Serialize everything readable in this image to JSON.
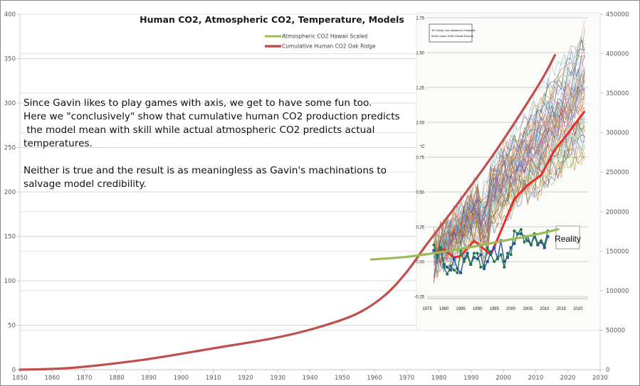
{
  "chart_data": {
    "type": "line",
    "title": "Human CO2, Atmospheric CO2, Temperature, Models",
    "xlabel": "",
    "ylabel_left": "",
    "ylabel_right": "",
    "x_ticks": [
      "1850",
      "1860",
      "1870",
      "1880",
      "1890",
      "1900",
      "1910",
      "1920",
      "1930",
      "1940",
      "1950",
      "1960",
      "1970",
      "1980",
      "1990",
      "2000",
      "2010",
      "2020",
      "2030"
    ],
    "xlim": [
      1850,
      2030
    ],
    "y_left_ticks": [
      "0",
      "50",
      "100",
      "150",
      "200",
      "250",
      "300",
      "350",
      "400"
    ],
    "ylim_left": [
      0,
      400
    ],
    "y_right_ticks": [
      "0",
      "50000",
      "100000",
      "150000",
      "200000",
      "250000",
      "300000",
      "350000",
      "400000",
      "450000"
    ],
    "ylim_right": [
      0,
      450000
    ],
    "grid": true,
    "legend_position": "top-center",
    "legend": [
      {
        "label": "Atmospheric CO2 Hawaii Scaled",
        "color": "#9bbb59"
      },
      {
        "label": "Cumulative Human CO2 Oak Ridge",
        "color": "#c0504d"
      }
    ],
    "series": [
      {
        "name": "Cumulative Human CO2 Oak Ridge",
        "axis": "left",
        "color": "#c0504d",
        "x": [
          1850,
          1866,
          1888,
          1910,
          1928,
          1941,
          1954,
          1963,
          1970,
          1976,
          1985,
          1998,
          2011,
          2016
        ],
        "values": [
          0,
          2,
          11,
          24,
          35,
          46,
          62,
          83,
          110,
          140,
          183,
          248,
          321,
          354
        ]
      },
      {
        "name": "Atmospheric CO2 Hawaii Scaled",
        "axis": "left",
        "color": "#9bbb59",
        "x": [
          1959,
          1970,
          1980,
          1990,
          2000,
          2010,
          2017
        ],
        "values": [
          124,
          127,
          132,
          138,
          145,
          152,
          158
        ]
      }
    ],
    "annotation": {
      "lines": [
        "Since Gavin likes to play games with axis, we get to have some fun too.",
        "Here we \"conclusively\" show that cumulative human CO2 production predicts",
        " the model mean with skill while actual atmospheric CO2 predicts actual",
        "temperatures."
      ],
      "lines2": [
        "Neither is true and the result is as meaningless as Gavin's machinations to",
        "salvage model credibility."
      ]
    },
    "inset": {
      "description": "Overlaid model-vs-observations temperature chart (CMIP5 spaghetti with model mean and observations)",
      "y_ticks": [
        "-0.25",
        "0.00",
        "0.25",
        "0.50",
        "0.75",
        "1.00",
        "1.25",
        "1.50",
        "1.75"
      ],
      "y_unit": "°C",
      "x_ticks": [
        "1975",
        "1980",
        "1985",
        "1990",
        "1995",
        "2000",
        "2005",
        "2010",
        "2015",
        "2020"
      ],
      "credit_lines": [
        "JR Christy, Univ. Alabama in Huntsville",
        "Model output: KNMI Climate Explorer"
      ],
      "reality_label": "Reality",
      "model_mean_color": "#ee2a24",
      "obs_colors": [
        "#2e4fa3",
        "#1f7a4a"
      ]
    }
  }
}
